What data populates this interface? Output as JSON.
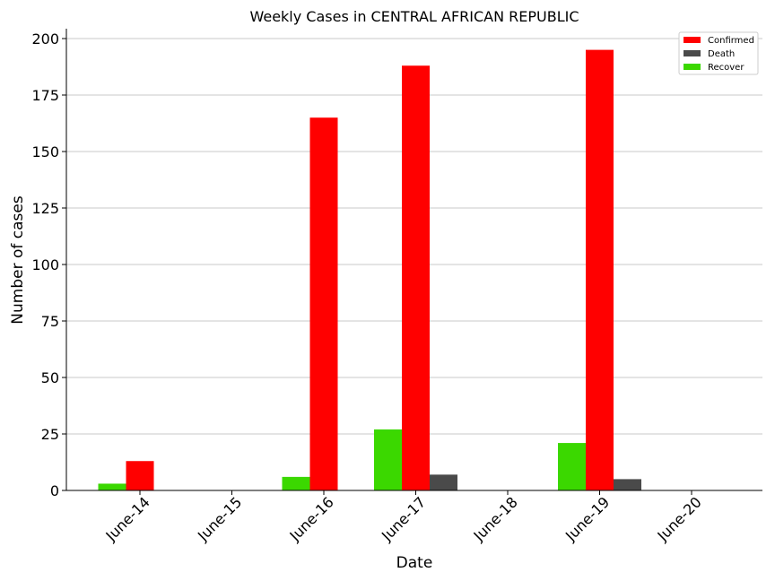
{
  "chart_data": {
    "type": "bar",
    "title": "Weekly Cases in CENTRAL AFRICAN REPUBLIC",
    "xlabel": "Date",
    "ylabel": "Number of cases",
    "categories": [
      "June-14",
      "June-15",
      "June-16",
      "June-17",
      "June-18",
      "June-19",
      "June-20"
    ],
    "ylim": [
      0,
      205
    ],
    "yticks": [
      0,
      25,
      50,
      75,
      100,
      125,
      150,
      175,
      200
    ],
    "grid": "horizontal",
    "legend_position": "top-right",
    "series": [
      {
        "name": "Recover",
        "color": "#3bd800",
        "values": [
          3,
          0,
          6,
          27,
          0,
          21,
          0
        ]
      },
      {
        "name": "Confirmed",
        "color": "#ff0000",
        "values": [
          13,
          0,
          165,
          188,
          0,
          195,
          0
        ]
      },
      {
        "name": "Death",
        "color": "#4a4a4a",
        "values": [
          0,
          0,
          0,
          7,
          0,
          5,
          0
        ]
      }
    ],
    "legend_order": [
      "Confirmed",
      "Death",
      "Recover"
    ]
  }
}
